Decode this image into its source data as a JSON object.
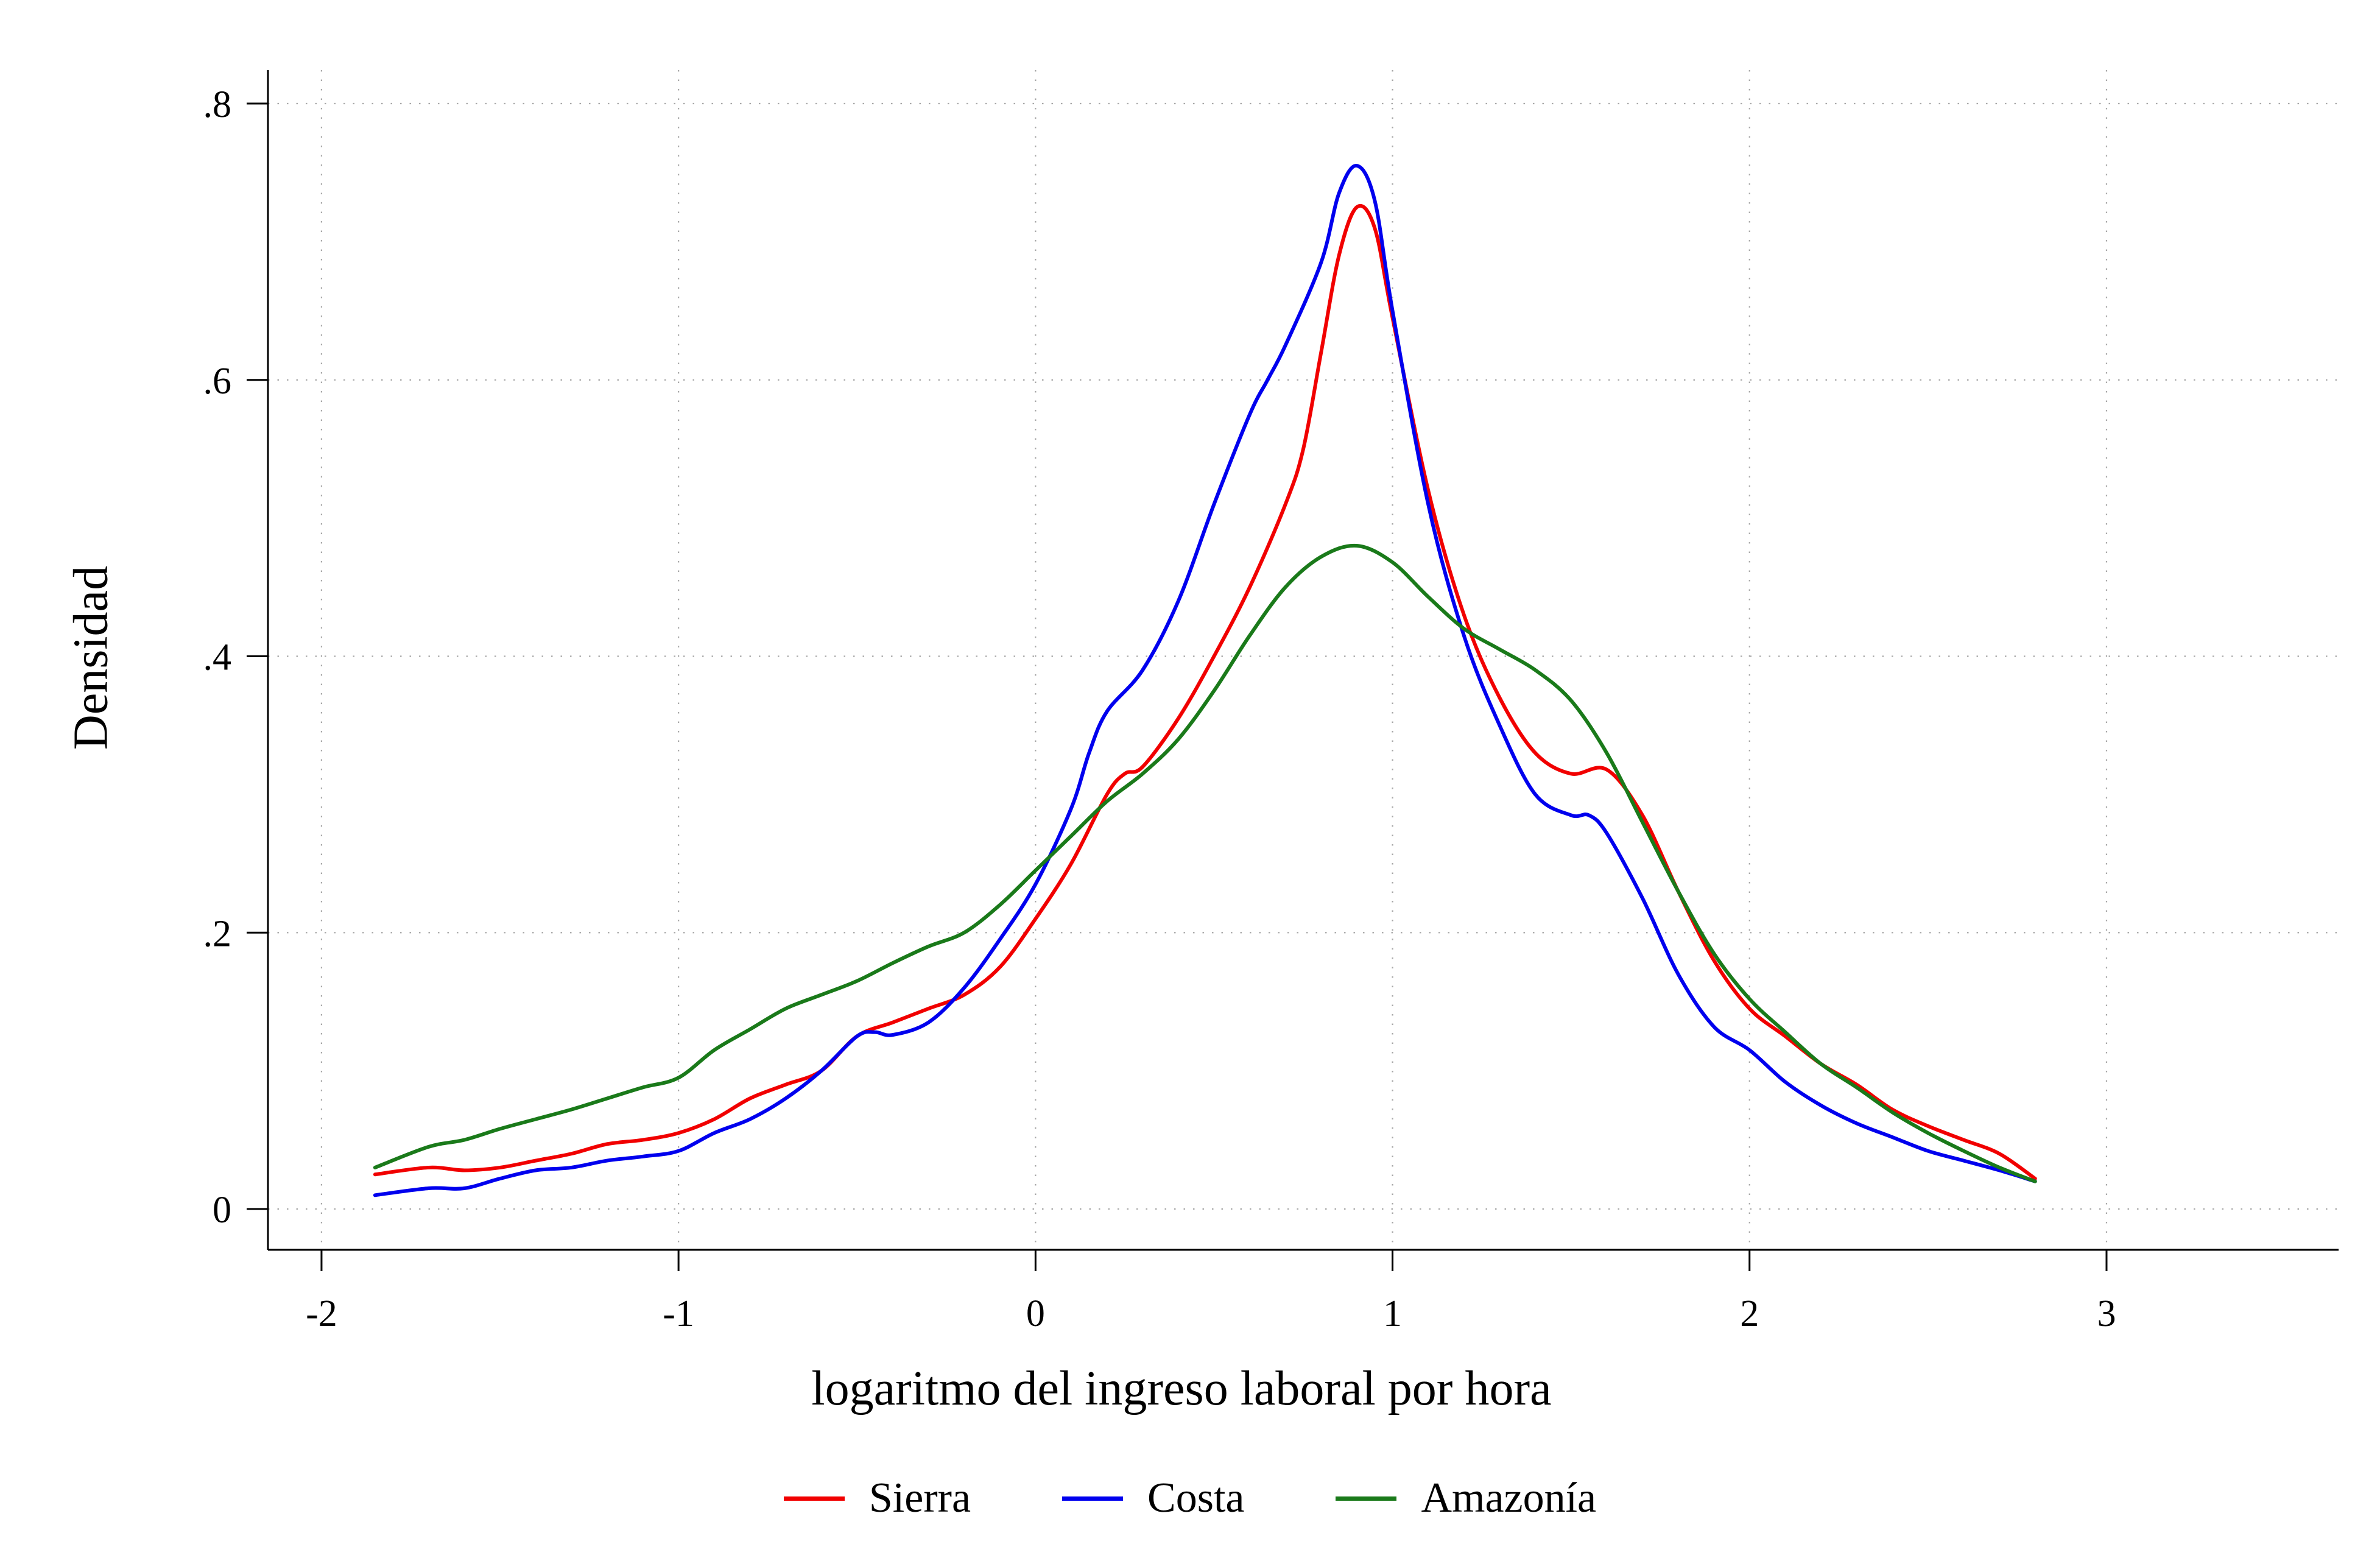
{
  "chart_data": {
    "type": "line",
    "title": "",
    "xlabel": "logaritmo del ingreso laboral por hora",
    "ylabel": "Densidad",
    "xlim": [
      -2,
      3.6
    ],
    "ylim": [
      0,
      0.8
    ],
    "x_ticks": [
      -2,
      -1,
      0,
      1,
      2,
      3
    ],
    "x_tick_labels": [
      "-2",
      "-1",
      "0",
      "1",
      "2",
      "3"
    ],
    "y_ticks": [
      0,
      0.2,
      0.4,
      0.6,
      0.8
    ],
    "y_tick_labels": [
      "0",
      ".2",
      ".4",
      ".6",
      ".8"
    ],
    "grid": "dotted",
    "grid_color": "#a8a8a8",
    "axis_color": "#000000",
    "legend_position": "bottom",
    "series": [
      {
        "name": "Sierra",
        "color": "#f10000",
        "x": [
          -1.85,
          -1.7,
          -1.6,
          -1.5,
          -1.4,
          -1.3,
          -1.2,
          -1.1,
          -1.0,
          -0.9,
          -0.8,
          -0.7,
          -0.6,
          -0.5,
          -0.4,
          -0.3,
          -0.2,
          -0.1,
          0,
          0.1,
          0.2,
          0.25,
          0.3,
          0.4,
          0.5,
          0.6,
          0.7,
          0.75,
          0.8,
          0.85,
          0.9,
          0.95,
          1.0,
          1.1,
          1.2,
          1.3,
          1.4,
          1.5,
          1.6,
          1.7,
          1.8,
          1.9,
          2.0,
          2.1,
          2.2,
          2.3,
          2.4,
          2.5,
          2.6,
          2.7,
          2.8
        ],
        "y": [
          0.025,
          0.03,
          0.028,
          0.03,
          0.035,
          0.04,
          0.047,
          0.05,
          0.055,
          0.065,
          0.08,
          0.09,
          0.1,
          0.125,
          0.135,
          0.145,
          0.155,
          0.175,
          0.21,
          0.25,
          0.3,
          0.315,
          0.32,
          0.355,
          0.4,
          0.45,
          0.51,
          0.55,
          0.62,
          0.69,
          0.725,
          0.71,
          0.645,
          0.52,
          0.43,
          0.37,
          0.33,
          0.315,
          0.318,
          0.285,
          0.23,
          0.18,
          0.145,
          0.125,
          0.105,
          0.09,
          0.072,
          0.06,
          0.05,
          0.04,
          0.022
        ]
      },
      {
        "name": "Costa",
        "color": "#0000ee",
        "x": [
          -1.85,
          -1.7,
          -1.6,
          -1.5,
          -1.4,
          -1.3,
          -1.2,
          -1.1,
          -1.0,
          -0.9,
          -0.8,
          -0.7,
          -0.6,
          -0.5,
          -0.45,
          -0.4,
          -0.3,
          -0.2,
          -0.1,
          0,
          0.1,
          0.15,
          0.2,
          0.3,
          0.4,
          0.5,
          0.6,
          0.65,
          0.7,
          0.8,
          0.85,
          0.9,
          0.95,
          1.0,
          1.1,
          1.2,
          1.3,
          1.4,
          1.5,
          1.55,
          1.6,
          1.7,
          1.8,
          1.9,
          2.0,
          2.1,
          2.2,
          2.3,
          2.4,
          2.5,
          2.6,
          2.7,
          2.8
        ],
        "y": [
          0.01,
          0.015,
          0.015,
          0.022,
          0.028,
          0.03,
          0.035,
          0.038,
          0.042,
          0.055,
          0.065,
          0.08,
          0.1,
          0.125,
          0.128,
          0.126,
          0.135,
          0.16,
          0.195,
          0.235,
          0.29,
          0.33,
          0.36,
          0.39,
          0.44,
          0.51,
          0.575,
          0.6,
          0.625,
          0.685,
          0.735,
          0.755,
          0.73,
          0.65,
          0.51,
          0.415,
          0.35,
          0.3,
          0.285,
          0.285,
          0.272,
          0.225,
          0.17,
          0.132,
          0.115,
          0.092,
          0.075,
          0.062,
          0.052,
          0.042,
          0.035,
          0.028,
          0.02
        ]
      },
      {
        "name": "Amazonía",
        "color": "#1a7a1a",
        "x": [
          -1.85,
          -1.7,
          -1.6,
          -1.5,
          -1.4,
          -1.3,
          -1.2,
          -1.1,
          -1.0,
          -0.9,
          -0.8,
          -0.7,
          -0.6,
          -0.5,
          -0.4,
          -0.3,
          -0.2,
          -0.1,
          0,
          0.1,
          0.2,
          0.3,
          0.4,
          0.5,
          0.6,
          0.7,
          0.8,
          0.9,
          1.0,
          1.1,
          1.2,
          1.3,
          1.4,
          1.5,
          1.6,
          1.7,
          1.8,
          1.9,
          2.0,
          2.1,
          2.2,
          2.3,
          2.4,
          2.5,
          2.6,
          2.7,
          2.8
        ],
        "y": [
          0.03,
          0.045,
          0.05,
          0.058,
          0.065,
          0.072,
          0.08,
          0.088,
          0.095,
          0.115,
          0.13,
          0.145,
          0.155,
          0.165,
          0.178,
          0.19,
          0.2,
          0.22,
          0.245,
          0.27,
          0.295,
          0.315,
          0.34,
          0.375,
          0.415,
          0.45,
          0.472,
          0.48,
          0.468,
          0.443,
          0.42,
          0.405,
          0.39,
          0.368,
          0.33,
          0.28,
          0.23,
          0.185,
          0.152,
          0.128,
          0.105,
          0.088,
          0.07,
          0.055,
          0.042,
          0.03,
          0.02
        ]
      }
    ]
  }
}
